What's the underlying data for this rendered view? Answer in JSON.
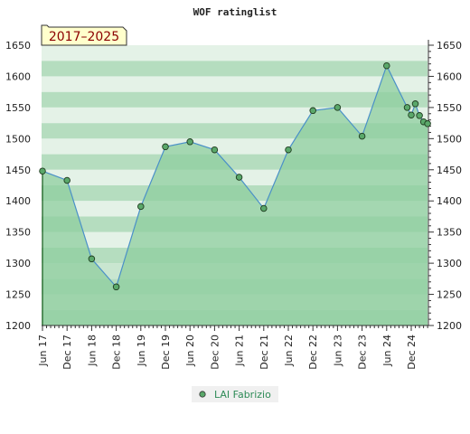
{
  "chart_data": {
    "type": "area",
    "title": "WOF ratinglist",
    "subtitle": "2017–2025",
    "ylim": [
      1200,
      1650
    ],
    "yticks": [
      1200,
      1250,
      1300,
      1350,
      1400,
      1450,
      1500,
      1550,
      1600,
      1650
    ],
    "x_tick_labels": [
      "Jun 17",
      "Dec 17",
      "Jun 18",
      "Dec 18",
      "Jun 19",
      "Dec 19",
      "Jun 20",
      "Dec 20",
      "Jun 21",
      "Dec 21",
      "Jun 22",
      "Dec 22",
      "Jun 23",
      "Dec 23",
      "Jun 24",
      "Dec 24"
    ],
    "grid": true,
    "legend_position": "bottom-center",
    "colors": {
      "fill": "#8fce9f",
      "line": "#4a90c8",
      "marker": "#5aa86a",
      "band_dark": "#b5ddbf",
      "band_light": "#e4f2e7"
    },
    "series": [
      {
        "name": "LAI Fabrizio",
        "x": [
          "2017-06",
          "2017-12",
          "2018-06",
          "2018-12",
          "2019-06",
          "2019-12",
          "2020-06",
          "2020-12",
          "2021-06",
          "2021-12",
          "2022-06",
          "2022-12",
          "2023-06",
          "2023-12",
          "2024-06",
          "2024-11",
          "2024-12",
          "2025-01",
          "2025-02",
          "2025-03",
          "2025-04"
        ],
        "values": [
          1448,
          1433,
          1307,
          1262,
          1391,
          1487,
          1495,
          1482,
          1438,
          1388,
          1482,
          1545,
          1550,
          1504,
          1617,
          1550,
          1538,
          1556,
          1537,
          1527,
          1524
        ]
      }
    ]
  }
}
